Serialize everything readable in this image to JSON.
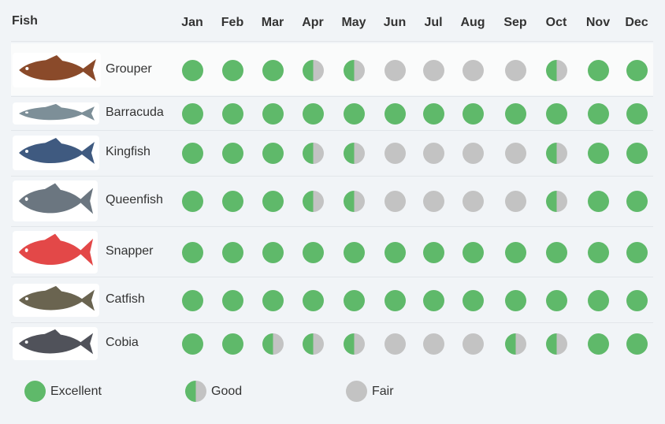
{
  "header": {
    "fish_label": "Fish",
    "months": [
      "Jan",
      "Feb",
      "Mar",
      "Apr",
      "May",
      "Jun",
      "Jul",
      "Aug",
      "Sep",
      "Oct",
      "Nov",
      "Dec"
    ]
  },
  "colors": {
    "excellent": "#5fb96a",
    "fair": "#c3c3c3"
  },
  "fish": [
    {
      "name": "Grouper",
      "fish_color": "#8a4a2a",
      "ratings": [
        "E",
        "E",
        "E",
        "G",
        "G",
        "F",
        "F",
        "F",
        "F",
        "G",
        "E",
        "E"
      ]
    },
    {
      "name": "Barracuda",
      "fish_color": "#7d8f98",
      "ratings": [
        "E",
        "E",
        "E",
        "E",
        "E",
        "E",
        "E",
        "E",
        "E",
        "E",
        "E",
        "E"
      ]
    },
    {
      "name": "Kingfish",
      "fish_color": "#3f5a80",
      "ratings": [
        "E",
        "E",
        "E",
        "G",
        "G",
        "F",
        "F",
        "F",
        "F",
        "G",
        "E",
        "E"
      ]
    },
    {
      "name": "Queenfish",
      "fish_color": "#6b7680",
      "ratings": [
        "E",
        "E",
        "E",
        "G",
        "G",
        "F",
        "F",
        "F",
        "F",
        "G",
        "E",
        "E"
      ]
    },
    {
      "name": "Snapper",
      "fish_color": "#e34848",
      "ratings": [
        "E",
        "E",
        "E",
        "E",
        "E",
        "E",
        "E",
        "E",
        "E",
        "E",
        "E",
        "E"
      ]
    },
    {
      "name": "Catfish",
      "fish_color": "#6a6450",
      "ratings": [
        "E",
        "E",
        "E",
        "E",
        "E",
        "E",
        "E",
        "E",
        "E",
        "E",
        "E",
        "E"
      ]
    },
    {
      "name": "Cobia",
      "fish_color": "#50525a",
      "ratings": [
        "E",
        "E",
        "G",
        "G",
        "G",
        "F",
        "F",
        "F",
        "G",
        "G",
        "E",
        "E"
      ]
    }
  ],
  "legend": [
    {
      "key": "E",
      "label": "Excellent"
    },
    {
      "key": "G",
      "label": "Good"
    },
    {
      "key": "F",
      "label": "Fair"
    }
  ]
}
